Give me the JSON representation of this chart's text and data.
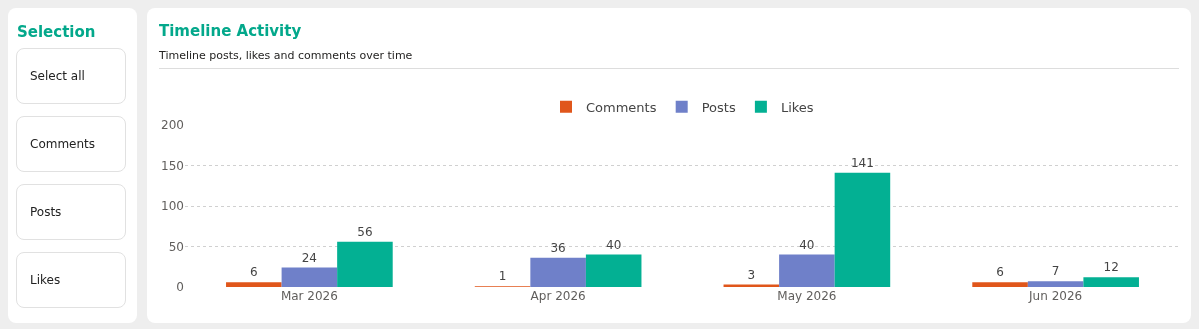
{
  "chart_data": [
    {
      "type": "other",
      "title": "Selection",
      "annotations": [
        "Select all",
        "Comments",
        "Posts",
        "Likes"
      ]
    },
    {
      "type": "bar",
      "title": "Timeline Activity",
      "subtitle": "Timeline posts, likes and comments over time",
      "categories": [
        "Mar 2026",
        "Apr 2026",
        "May 2026",
        "Jun 2026"
      ],
      "series": [
        {
          "name": "Comments",
          "color": "#e0561b",
          "values": [
            6,
            1,
            3,
            6
          ]
        },
        {
          "name": "Posts",
          "color": "#6f80c9",
          "values": [
            24,
            36,
            40,
            7
          ]
        },
        {
          "name": "Likes",
          "color": "#03b093",
          "values": [
            56,
            40,
            141,
            12
          ]
        }
      ],
      "ylim": [
        0,
        200
      ],
      "yticks": [
        0,
        50,
        100,
        150,
        200
      ],
      "grid": "y",
      "legend": "top",
      "data_labels": true
    }
  ]
}
